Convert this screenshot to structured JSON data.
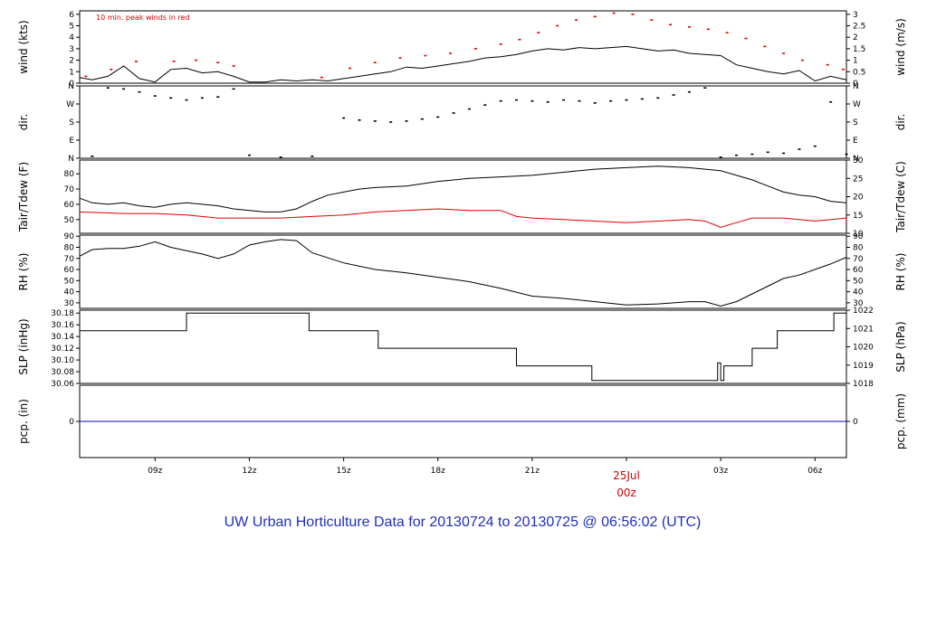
{
  "title": "UW Urban Horticulture Data for 20130724  to  20130725 @ 06:56:02  (UTC)",
  "note": "10 min. peak winds in red",
  "colors": {
    "main": "#000000",
    "red": "#e00000",
    "blue": "#0000cc",
    "title": "#1f2fbf"
  },
  "time_axis": {
    "unit": "hours",
    "range": [
      6.6,
      31.0
    ],
    "ticks": [
      {
        "at": 9,
        "label": "09z"
      },
      {
        "at": 12,
        "label": "12z"
      },
      {
        "at": 15,
        "label": "15z"
      },
      {
        "at": 18,
        "label": "18z"
      },
      {
        "at": 21,
        "label": "21z"
      },
      {
        "at": 24,
        "label": "25Jul"
      },
      {
        "at": 27,
        "label": "03z"
      },
      {
        "at": 30,
        "label": "06z"
      }
    ],
    "date_label": "00z"
  },
  "chart_data": [
    {
      "type": "line",
      "id": "wind",
      "ylabel": "wind (kts)",
      "ylabel_right": "wind (m/s)",
      "ylim": [
        0,
        6.3
      ],
      "yticks": [
        "0",
        "1",
        "2",
        "3",
        "4",
        "5",
        "6"
      ],
      "yticks_right": [
        "0",
        "0.5",
        "1",
        "1.5",
        "2",
        "2.5",
        "3"
      ],
      "series": [
        {
          "role": "speed",
          "x": [
            6.6,
            7.0,
            7.5,
            8.0,
            8.5,
            9.0,
            9.5,
            10.0,
            10.5,
            11.0,
            11.5,
            12.0,
            12.5,
            13.0,
            13.5,
            14.0,
            14.5,
            15.0,
            15.5,
            16.0,
            16.5,
            17.0,
            17.5,
            18.0,
            18.5,
            19.0,
            19.5,
            20.0,
            20.5,
            21.0,
            21.5,
            22.0,
            22.5,
            23.0,
            23.5,
            24.0,
            24.5,
            25.0,
            25.5,
            26.0,
            26.5,
            27.0,
            27.5,
            28.0,
            28.5,
            29.0,
            29.5,
            30.0,
            30.5,
            31.0
          ],
          "values": [
            0.5,
            0.3,
            0.6,
            1.5,
            0.4,
            0.1,
            1.2,
            1.3,
            0.9,
            1.0,
            0.6,
            0.1,
            0.1,
            0.3,
            0.2,
            0.3,
            0.2,
            0.4,
            0.6,
            0.8,
            1.0,
            1.4,
            1.3,
            1.5,
            1.7,
            1.9,
            2.2,
            2.3,
            2.5,
            2.8,
            3.0,
            2.9,
            3.1,
            3.0,
            3.1,
            3.2,
            3.0,
            2.8,
            2.9,
            2.6,
            2.5,
            2.4,
            1.6,
            1.3,
            1.0,
            0.8,
            1.1,
            0.2,
            0.6,
            0.3
          ]
        },
        {
          "role": "peak",
          "x": [
            6.8,
            7.6,
            8.4,
            9.6,
            10.3,
            11.0,
            11.5,
            14.3,
            15.2,
            16.0,
            16.8,
            17.6,
            18.4,
            19.2,
            20.0,
            20.6,
            21.2,
            21.8,
            22.4,
            23.0,
            23.6,
            24.2,
            24.8,
            25.4,
            26.0,
            26.6,
            27.2,
            27.8,
            28.4,
            29.0,
            29.6,
            30.4,
            30.9
          ],
          "values": [
            0.6,
            1.2,
            1.9,
            1.9,
            2.0,
            1.8,
            1.5,
            0.5,
            1.3,
            1.8,
            2.2,
            2.4,
            2.6,
            3.0,
            3.4,
            3.8,
            4.4,
            5.0,
            5.5,
            5.8,
            6.1,
            6.0,
            5.5,
            5.1,
            4.9,
            4.7,
            4.4,
            3.9,
            3.2,
            2.6,
            2.0,
            1.6,
            1.2
          ]
        }
      ]
    },
    {
      "type": "scatter",
      "id": "dir",
      "ylabel": "dir.",
      "ylabel_right": "dir.",
      "ylim": [
        0,
        360
      ],
      "yticks": [
        "N",
        "E",
        "S",
        "W",
        "N"
      ],
      "series": [
        {
          "role": "direction",
          "x": [
            7.0,
            7.5,
            8.0,
            8.5,
            9.0,
            9.5,
            10.0,
            10.5,
            11.0,
            11.5,
            12.0,
            13.0,
            14.0,
            15.0,
            15.5,
            16.0,
            16.5,
            17.0,
            17.5,
            18.0,
            18.5,
            19.0,
            19.5,
            20.0,
            20.5,
            21.0,
            21.5,
            22.0,
            22.5,
            23.0,
            23.5,
            24.0,
            24.5,
            25.0,
            25.5,
            26.0,
            26.5,
            27.0,
            27.5,
            28.0,
            28.5,
            29.0,
            29.5,
            30.0,
            30.5,
            31.0
          ],
          "values": [
            10,
            350,
            345,
            330,
            310,
            300,
            290,
            300,
            305,
            345,
            15,
            5,
            10,
            200,
            190,
            185,
            180,
            185,
            195,
            205,
            225,
            245,
            265,
            285,
            290,
            285,
            280,
            290,
            285,
            275,
            285,
            290,
            295,
            300,
            315,
            330,
            350,
            5,
            15,
            20,
            30,
            25,
            45,
            60,
            280,
            20
          ]
        }
      ]
    },
    {
      "type": "line",
      "id": "temp",
      "ylabel": "Tair/Tdew (F)",
      "ylabel_right": "Tair/Tdew (C)",
      "ylim": [
        41,
        89
      ],
      "yticks": [
        "50",
        "60",
        "70",
        "80"
      ],
      "yticks_right": [
        "10",
        "15",
        "20",
        "25",
        "30"
      ],
      "series": [
        {
          "role": "tair",
          "x": [
            6.6,
            7.0,
            7.5,
            8.0,
            8.5,
            9.0,
            9.5,
            10.0,
            10.5,
            11.0,
            11.5,
            12.0,
            12.5,
            13.0,
            13.5,
            14.0,
            14.5,
            15.0,
            15.5,
            16.0,
            17.0,
            18.0,
            19.0,
            20.0,
            21.0,
            22.0,
            23.0,
            24.0,
            25.0,
            26.0,
            27.0,
            27.5,
            28.0,
            28.5,
            29.0,
            29.5,
            30.0,
            30.5,
            31.0
          ],
          "values": [
            64,
            61,
            60,
            61,
            59,
            58,
            60,
            61,
            60,
            59,
            57,
            56,
            55,
            55,
            57,
            62,
            66,
            68,
            70,
            71,
            72,
            75,
            77,
            78,
            79,
            81,
            83,
            84,
            85,
            84,
            82,
            79,
            76,
            72,
            68,
            66,
            65,
            62,
            61
          ]
        },
        {
          "role": "tdew",
          "x": [
            6.6,
            8.0,
            9.0,
            10.0,
            11.0,
            12.0,
            13.0,
            14.0,
            15.0,
            16.0,
            17.0,
            18.0,
            19.0,
            20.0,
            20.5,
            21.0,
            22.0,
            23.0,
            24.0,
            25.0,
            26.0,
            26.5,
            27.0,
            27.5,
            28.0,
            29.0,
            30.0,
            31.0
          ],
          "values": [
            55,
            54,
            54,
            53,
            51,
            51,
            51,
            52,
            53,
            55,
            56,
            57,
            56,
            56,
            52,
            51,
            50,
            49,
            48,
            49,
            50,
            49,
            45,
            48,
            51,
            51,
            49,
            51
          ]
        }
      ]
    },
    {
      "type": "line",
      "id": "rh",
      "ylabel": "RH (%)",
      "ylabel_right": "RH (%)",
      "ylim": [
        25,
        91
      ],
      "yticks": [
        "30",
        "40",
        "50",
        "60",
        "70",
        "80",
        "90"
      ],
      "yticks_right": [
        "30",
        "40",
        "50",
        "60",
        "70",
        "80",
        "90"
      ],
      "series": [
        {
          "role": "rh",
          "x": [
            6.6,
            7.0,
            7.5,
            8.0,
            8.5,
            9.0,
            9.5,
            10.0,
            10.5,
            11.0,
            11.5,
            12.0,
            12.5,
            13.0,
            13.5,
            14.0,
            15.0,
            16.0,
            17.0,
            18.0,
            19.0,
            20.0,
            21.0,
            22.0,
            23.0,
            24.0,
            25.0,
            26.0,
            26.5,
            27.0,
            27.5,
            28.0,
            28.5,
            29.0,
            29.5,
            30.0,
            30.5,
            31.0
          ],
          "values": [
            72,
            78,
            79,
            79,
            81,
            85,
            80,
            77,
            74,
            70,
            74,
            82,
            85,
            87,
            86,
            75,
            66,
            60,
            57,
            53,
            49,
            43,
            36,
            34,
            31,
            28,
            29,
            31,
            31,
            27,
            31,
            38,
            45,
            52,
            55,
            60,
            65,
            71
          ]
        }
      ]
    },
    {
      "type": "line",
      "id": "slp",
      "ylabel": "SLP (inHg)",
      "ylabel_right": "SLP (hPa)",
      "ylim": [
        30.06,
        30.185
      ],
      "yticks": [
        "30.06",
        "30.08",
        "30.10",
        "30.12",
        "30.14",
        "30.16",
        "30.18"
      ],
      "yticks_right": [
        "1018",
        "1019",
        "1020",
        "1021",
        "1022"
      ],
      "series": [
        {
          "role": "slp",
          "x": [
            6.6,
            10.0,
            10.0,
            13.9,
            13.9,
            16.1,
            16.1,
            20.5,
            20.5,
            22.9,
            22.9,
            26.9,
            26.9,
            27.0,
            27.0,
            27.1,
            27.1,
            28.0,
            28.0,
            28.8,
            28.8,
            30.6,
            30.6,
            31.0
          ],
          "values": [
            30.15,
            30.15,
            30.18,
            30.18,
            30.15,
            30.15,
            30.12,
            30.12,
            30.09,
            30.09,
            30.065,
            30.065,
            30.095,
            30.095,
            30.065,
            30.065,
            30.09,
            30.09,
            30.12,
            30.12,
            30.15,
            30.15,
            30.18,
            30.18
          ]
        }
      ]
    },
    {
      "type": "line",
      "id": "pcp",
      "ylabel": "pcp. (in)",
      "ylabel_right": "pcp. (mm)",
      "ylim": [
        -1,
        1
      ],
      "yticks": [
        "0"
      ],
      "yticks_right": [
        "0"
      ],
      "series": [
        {
          "role": "pcp",
          "x": [
            6.6,
            31.0
          ],
          "values": [
            0,
            0
          ]
        }
      ]
    }
  ]
}
